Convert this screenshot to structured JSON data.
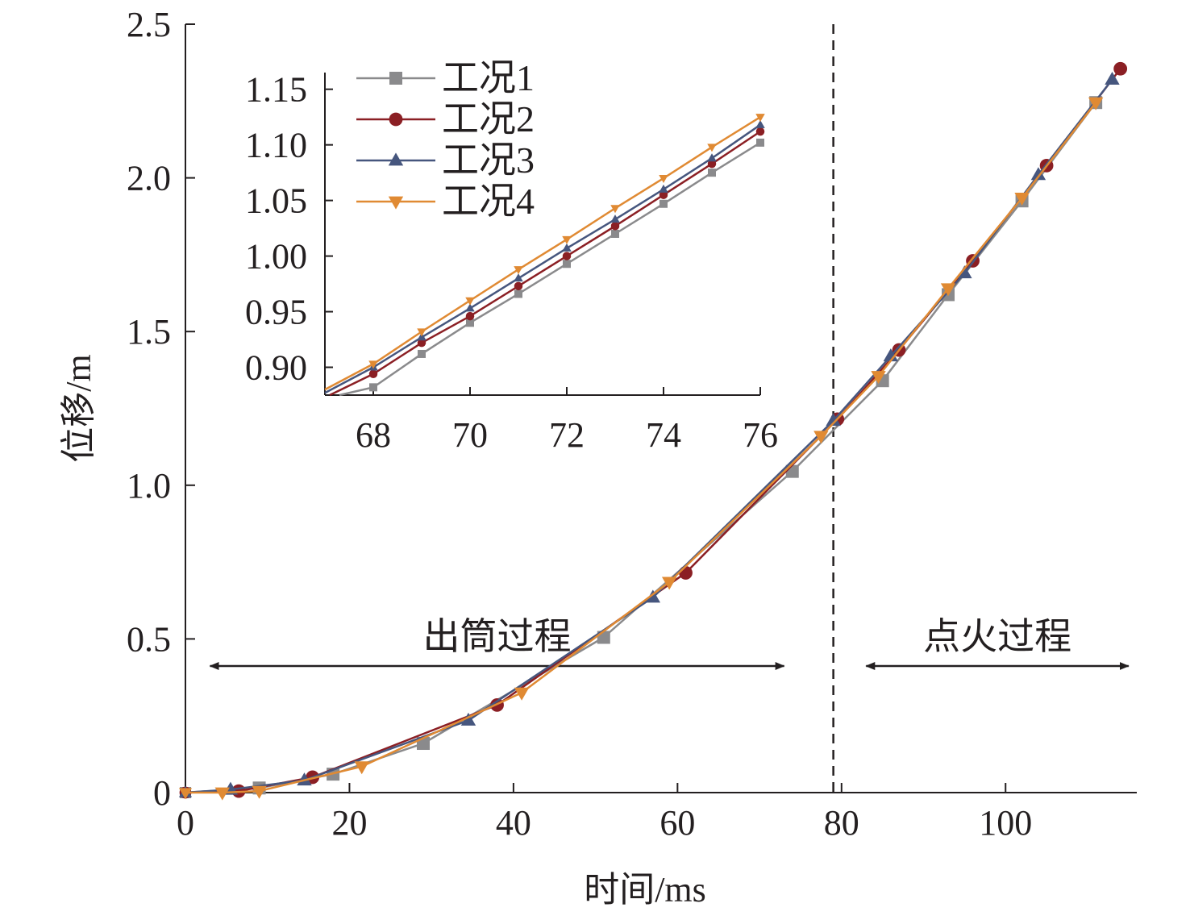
{
  "chart_data": {
    "type": "line",
    "xlabel": "时间/ms",
    "ylabel": "位移/m",
    "xlim": [
      0,
      116
    ],
    "ylim": [
      0,
      2.5
    ],
    "xticks": [
      0,
      20,
      40,
      60,
      80,
      100
    ],
    "yticks": [
      0,
      0.5,
      1.0,
      1.5,
      2.0,
      2.5
    ],
    "ytick_labels": [
      "0",
      "0.5",
      "1.0",
      "1.5",
      "2.0",
      "2.5"
    ],
    "grid": false,
    "legend_position": "inset-top",
    "divider_x": 79,
    "annotations": [
      {
        "text": "出筒过程",
        "from_x": 3,
        "to_x": 73
      },
      {
        "text": "点火过程",
        "from_x": 83,
        "to_x": 115
      }
    ],
    "series": [
      {
        "name": "工况1",
        "color": "#8a8a8c",
        "marker": "square",
        "x": [
          0,
          9,
          18,
          29,
          51,
          74,
          85,
          93,
          102,
          111
        ],
        "y": [
          0,
          0.015,
          0.06,
          0.16,
          0.505,
          1.045,
          1.34,
          1.62,
          1.925,
          2.245
        ]
      },
      {
        "name": "工况2",
        "color": "#8b1f24",
        "marker": "circle",
        "x": [
          0,
          6.5,
          15.5,
          38,
          61,
          79.5,
          87,
          96,
          105,
          114
        ],
        "y": [
          0,
          0.005,
          0.05,
          0.285,
          0.715,
          1.215,
          1.44,
          1.73,
          2.04,
          2.355
        ]
      },
      {
        "name": "工况3",
        "color": "#46567e",
        "marker": "triangle-up",
        "x": [
          0,
          5.5,
          14.5,
          34.5,
          57,
          79,
          86,
          95,
          104,
          113
        ],
        "y": [
          0,
          0.01,
          0.04,
          0.235,
          0.635,
          1.21,
          1.42,
          1.69,
          2.01,
          2.32
        ]
      },
      {
        "name": "工况4",
        "color": "#e08a33",
        "marker": "triangle-down",
        "x": [
          0,
          4.5,
          9,
          21.5,
          41,
          59,
          77.5,
          84.5,
          93,
          102,
          111
        ],
        "y": [
          0,
          0,
          0.005,
          0.085,
          0.325,
          0.685,
          1.16,
          1.355,
          1.64,
          1.935,
          2.245
        ]
      }
    ],
    "inset": {
      "xlim": [
        67,
        76
      ],
      "ylim": [
        0.875,
        1.165
      ],
      "xticks": [
        68,
        70,
        72,
        74,
        76
      ],
      "yticks": [
        0.9,
        0.95,
        1.0,
        1.05,
        1.1,
        1.15
      ],
      "ytick_labels": [
        "0.90",
        "0.95",
        "1.00",
        "1.05",
        "1.10",
        "1.15"
      ],
      "series": [
        {
          "name": "工况1",
          "x": [
            67.3,
            68,
            69,
            70,
            71,
            72,
            73,
            74,
            75,
            76
          ],
          "y": [
            0.875,
            0.882,
            0.912,
            0.94,
            0.966,
            0.993,
            1.02,
            1.047,
            1.075,
            1.102
          ]
        },
        {
          "name": "工况2",
          "x": [
            67.1,
            68,
            69,
            70,
            71,
            72,
            73,
            74,
            75,
            76
          ],
          "y": [
            0.875,
            0.894,
            0.922,
            0.946,
            0.973,
            1.0,
            1.027,
            1.055,
            1.083,
            1.112
          ]
        },
        {
          "name": "工况3",
          "x": [
            67,
            68,
            69,
            70,
            71,
            72,
            73,
            74,
            75,
            76
          ],
          "y": [
            0.877,
            0.9,
            0.927,
            0.953,
            0.98,
            1.007,
            1.033,
            1.06,
            1.088,
            1.118
          ]
        },
        {
          "name": "工况4",
          "x": [
            67,
            68,
            69,
            70,
            71,
            72,
            73,
            74,
            75,
            76
          ],
          "y": [
            0.88,
            0.903,
            0.932,
            0.96,
            0.988,
            1.015,
            1.043,
            1.07,
            1.098,
            1.125
          ]
        }
      ]
    }
  }
}
